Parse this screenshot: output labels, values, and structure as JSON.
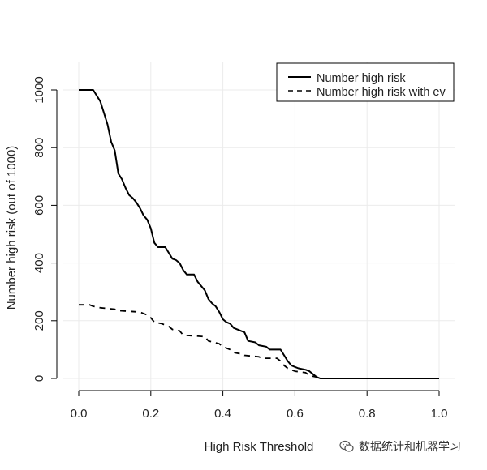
{
  "chart_data": {
    "type": "line",
    "title": "",
    "xlabel": "High Risk Threshold",
    "ylabel": "Number high risk (out of 1000)",
    "xlim": [
      0,
      1
    ],
    "ylim": [
      0,
      1000
    ],
    "grid": true,
    "legend_position": "top-right",
    "x_ticks": [
      "0.0",
      "0.2",
      "0.4",
      "0.6",
      "0.8",
      "1.0"
    ],
    "y_ticks": [
      "0",
      "200",
      "400",
      "600",
      "800",
      "1000"
    ],
    "series": [
      {
        "name": "Number high risk",
        "style": "solid",
        "color": "#000000",
        "points": [
          [
            0,
            1000
          ],
          [
            0.04,
            1000
          ],
          [
            0.06,
            960
          ],
          [
            0.07,
            920
          ],
          [
            0.08,
            880
          ],
          [
            0.09,
            820
          ],
          [
            0.1,
            790
          ],
          [
            0.11,
            710
          ],
          [
            0.12,
            690
          ],
          [
            0.13,
            660
          ],
          [
            0.14,
            635
          ],
          [
            0.15,
            625
          ],
          [
            0.16,
            610
          ],
          [
            0.17,
            590
          ],
          [
            0.18,
            565
          ],
          [
            0.19,
            550
          ],
          [
            0.2,
            520
          ],
          [
            0.21,
            470
          ],
          [
            0.22,
            455
          ],
          [
            0.24,
            455
          ],
          [
            0.25,
            435
          ],
          [
            0.26,
            415
          ],
          [
            0.27,
            410
          ],
          [
            0.28,
            400
          ],
          [
            0.29,
            375
          ],
          [
            0.3,
            360
          ],
          [
            0.32,
            360
          ],
          [
            0.33,
            335
          ],
          [
            0.35,
            305
          ],
          [
            0.36,
            275
          ],
          [
            0.37,
            260
          ],
          [
            0.38,
            250
          ],
          [
            0.39,
            230
          ],
          [
            0.4,
            205
          ],
          [
            0.41,
            195
          ],
          [
            0.42,
            190
          ],
          [
            0.43,
            175
          ],
          [
            0.45,
            165
          ],
          [
            0.46,
            160
          ],
          [
            0.47,
            130
          ],
          [
            0.49,
            125
          ],
          [
            0.5,
            115
          ],
          [
            0.52,
            110
          ],
          [
            0.53,
            100
          ],
          [
            0.56,
            100
          ],
          [
            0.57,
            80
          ],
          [
            0.58,
            60
          ],
          [
            0.59,
            45
          ],
          [
            0.6,
            40
          ],
          [
            0.61,
            35
          ],
          [
            0.63,
            30
          ],
          [
            0.64,
            25
          ],
          [
            0.65,
            15
          ],
          [
            0.66,
            5
          ],
          [
            0.67,
            0
          ],
          [
            1.0,
            0
          ]
        ]
      },
      {
        "name": "Number high risk with ev",
        "style": "dashed",
        "color": "#000000",
        "points": [
          [
            0,
            255
          ],
          [
            0.03,
            255
          ],
          [
            0.04,
            250
          ],
          [
            0.06,
            245
          ],
          [
            0.1,
            240
          ],
          [
            0.11,
            235
          ],
          [
            0.17,
            230
          ],
          [
            0.18,
            225
          ],
          [
            0.19,
            220
          ],
          [
            0.2,
            210
          ],
          [
            0.21,
            195
          ],
          [
            0.23,
            190
          ],
          [
            0.25,
            180
          ],
          [
            0.26,
            170
          ],
          [
            0.28,
            165
          ],
          [
            0.29,
            150
          ],
          [
            0.35,
            145
          ],
          [
            0.36,
            130
          ],
          [
            0.39,
            120
          ],
          [
            0.4,
            110
          ],
          [
            0.42,
            100
          ],
          [
            0.43,
            90
          ],
          [
            0.45,
            85
          ],
          [
            0.46,
            80
          ],
          [
            0.5,
            75
          ],
          [
            0.51,
            70
          ],
          [
            0.55,
            70
          ],
          [
            0.56,
            60
          ],
          [
            0.57,
            45
          ],
          [
            0.58,
            35
          ],
          [
            0.6,
            25
          ],
          [
            0.63,
            20
          ],
          [
            0.64,
            10
          ],
          [
            0.66,
            5
          ],
          [
            0.67,
            0
          ],
          [
            1.0,
            0
          ]
        ]
      }
    ]
  },
  "watermark": {
    "text": "数据统计和机器学习",
    "icon": "wechat-icon"
  }
}
